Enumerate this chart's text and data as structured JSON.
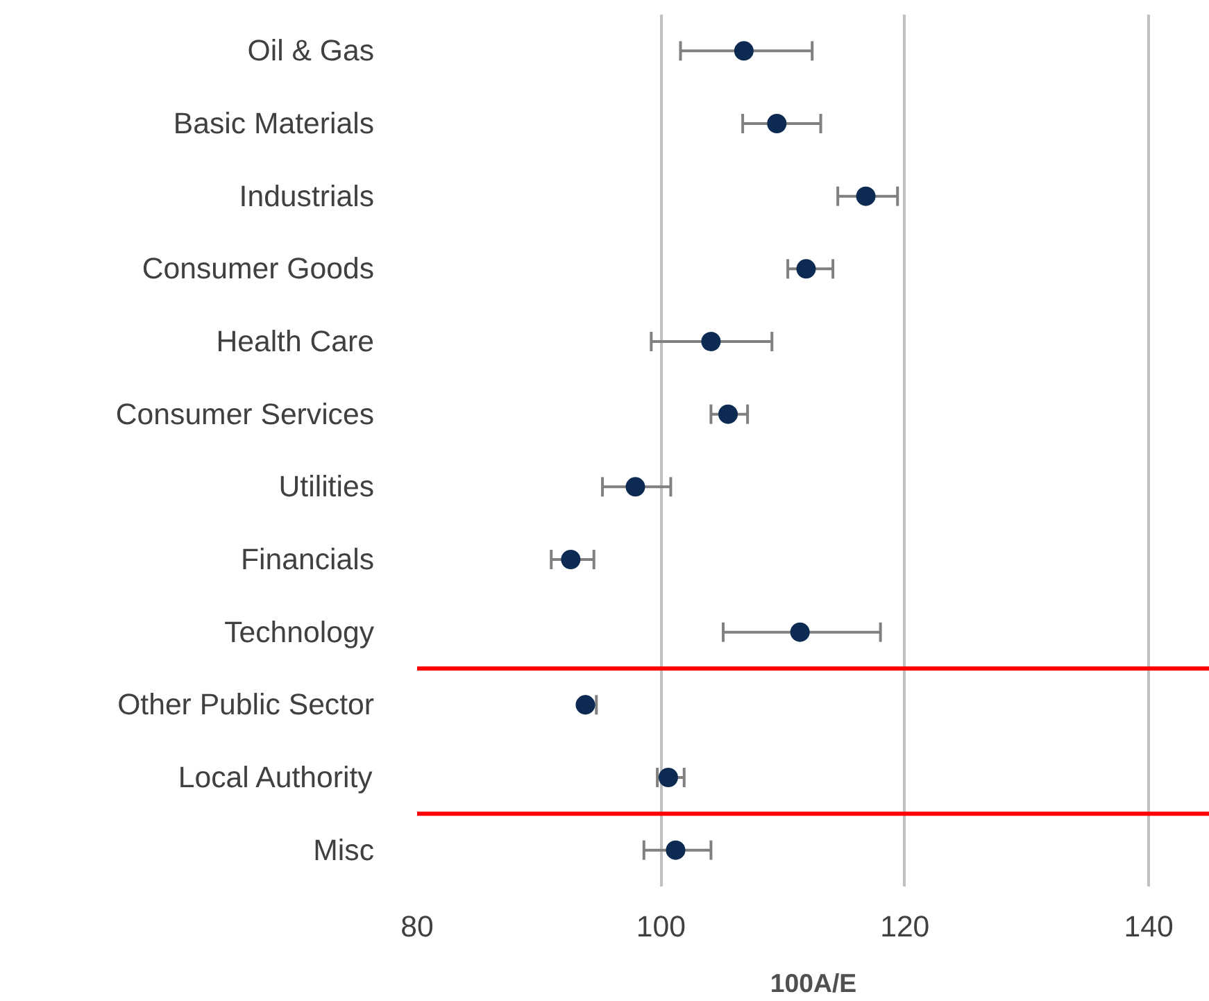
{
  "chart_data": {
    "type": "scatter",
    "orientation": "horizontal",
    "xlabel": "100A/E",
    "categories": [
      "Oil & Gas",
      "Basic Materials",
      "Industrials",
      "Consumer Goods",
      "Health Care",
      "Consumer Services",
      "Utilities",
      "Financials",
      "Technology",
      "Other Public Sector",
      "Local Authority",
      "Misc"
    ],
    "values": [
      106.8,
      109.5,
      116.8,
      111.9,
      104.1,
      105.5,
      97.9,
      92.6,
      111.4,
      93.8,
      100.6,
      101.2
    ],
    "colors": [
      "#0d2b52",
      "#0d2b52",
      "#0d2b52",
      "#0d2b52",
      "#0d2b52",
      "#0d2b52",
      "#0d2b52",
      "#0d2b52",
      "#0d2b52",
      "#0d2b52",
      "#0d2b52",
      "#0d2b52"
    ],
    "errors": [
      [
        101.6,
        112.4
      ],
      [
        106.7,
        113.1
      ],
      [
        114.5,
        119.4
      ],
      [
        110.4,
        114.1
      ],
      [
        99.2,
        109.1
      ],
      [
        104.1,
        107.1
      ],
      [
        95.2,
        100.8
      ],
      [
        91.0,
        94.5
      ],
      [
        105.1,
        118.0
      ],
      [
        93.8,
        94.7
      ],
      [
        99.7,
        101.9
      ],
      [
        98.6,
        104.1
      ]
    ],
    "xlim": [
      80,
      145
    ],
    "xticks": [
      80,
      100,
      120,
      140
    ],
    "grid": "x",
    "marker": "circle"
  }
}
